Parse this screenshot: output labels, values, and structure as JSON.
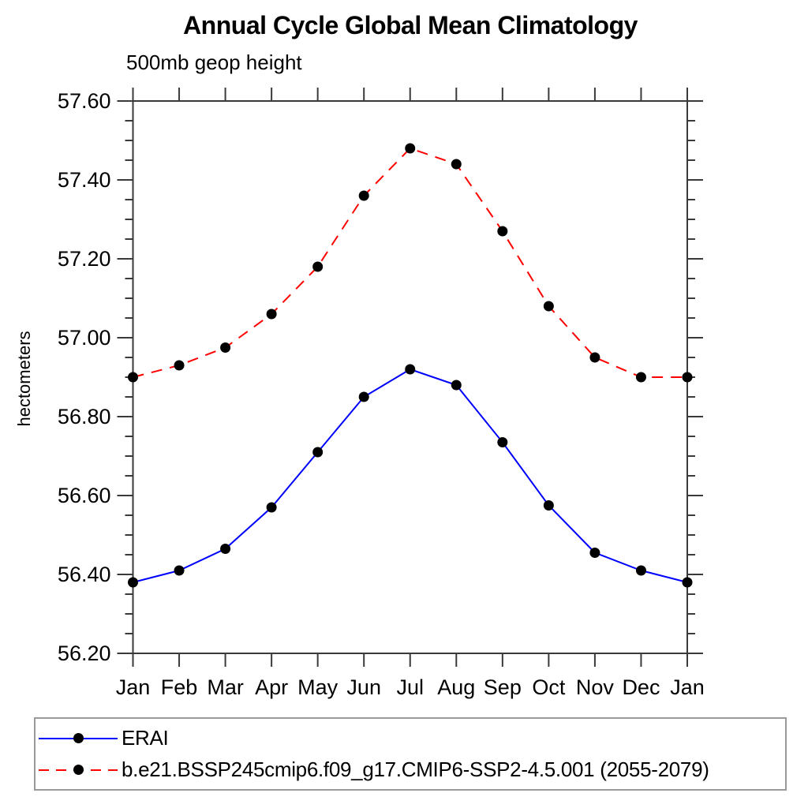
{
  "chart_data": {
    "type": "line",
    "title": "Annual Cycle Global Mean Climatology",
    "subtitle": "500mb geop height",
    "xlabel": "",
    "ylabel": "hectometers",
    "categories": [
      "Jan",
      "Feb",
      "Mar",
      "Apr",
      "May",
      "Jun",
      "Jul",
      "Aug",
      "Sep",
      "Oct",
      "Nov",
      "Dec",
      "Jan"
    ],
    "series": [
      {
        "name": "ERAI",
        "color": "#0000ff",
        "line_style": "solid",
        "marker": "filled-circle",
        "marker_color": "#000000",
        "values": [
          56.38,
          56.41,
          56.465,
          56.57,
          56.71,
          56.85,
          56.92,
          56.88,
          56.735,
          56.575,
          56.455,
          56.41,
          56.38
        ]
      },
      {
        "name": "b.e21.BSSP245cmip6.f09_g17.CMIP6-SSP2-4.5.001 (2055-2079)",
        "color": "#ff0000",
        "line_style": "dashed",
        "marker": "filled-circle",
        "marker_color": "#000000",
        "values": [
          56.9,
          56.93,
          56.975,
          57.06,
          57.18,
          57.36,
          57.48,
          57.44,
          57.27,
          57.08,
          56.95,
          56.9,
          56.9
        ]
      }
    ],
    "ylim": [
      56.2,
      57.6
    ],
    "y_major_ticks": [
      "56.20",
      "56.40",
      "56.60",
      "56.80",
      "57.00",
      "57.20",
      "57.40",
      "57.60"
    ],
    "y_minor_tick_step": 0.05,
    "grid": false,
    "legend_position": "bottom",
    "axis_color": "#3a3a3a",
    "text_color": "#000000"
  }
}
